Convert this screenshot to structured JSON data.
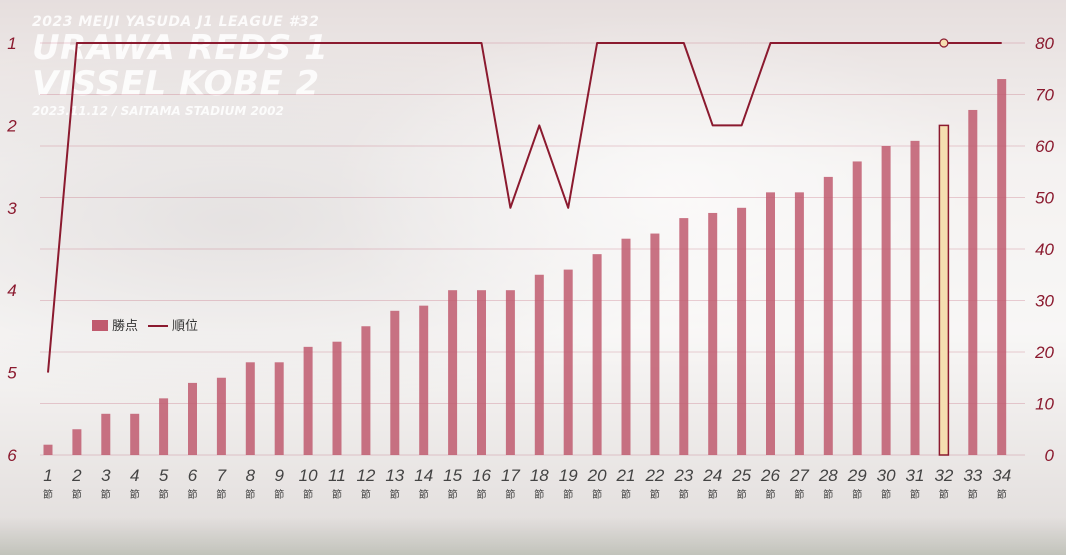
{
  "headline": {
    "league": "2023 MEIJI YASUDA J1 LEAGUE #32",
    "team1": "URAWA REDS 1",
    "team2": "VISSEL KOBE 2",
    "match_info": "2023.11.12 / SAITAMA STADIUM 2002"
  },
  "colors": {
    "bar": "#c05a6e",
    "bar_highlight": "#f5deb0",
    "bar_highlight_stroke": "#8b1a2f",
    "line": "#8b1a2f",
    "axis_text": "#8b1a2f",
    "x_text": "#444444"
  },
  "chart_data": {
    "type": "bar",
    "combo": "bar + line (dual axis)",
    "categories": [
      "1",
      "2",
      "3",
      "4",
      "5",
      "6",
      "7",
      "8",
      "9",
      "10",
      "11",
      "12",
      "13",
      "14",
      "15",
      "16",
      "17",
      "18",
      "19",
      "20",
      "21",
      "22",
      "23",
      "24",
      "25",
      "26",
      "27",
      "28",
      "29",
      "30",
      "31",
      "32",
      "33",
      "34"
    ],
    "category_suffix": "節",
    "series": [
      {
        "name": "勝点",
        "type": "bar",
        "axis": "right",
        "values": [
          2,
          5,
          8,
          8,
          11,
          14,
          15,
          18,
          18,
          21,
          22,
          25,
          28,
          29,
          32,
          32,
          32,
          35,
          36,
          39,
          42,
          43,
          46,
          47,
          48,
          51,
          51,
          54,
          57,
          60,
          61,
          64,
          67,
          73
        ]
      },
      {
        "name": "順位",
        "type": "line",
        "axis": "left",
        "values": [
          5,
          1,
          1,
          1,
          1,
          1,
          1,
          1,
          1,
          1,
          1,
          1,
          1,
          1,
          1,
          1,
          3,
          2,
          3,
          1,
          1,
          1,
          1,
          2,
          2,
          1,
          1,
          1,
          1,
          1,
          1,
          1,
          1,
          1
        ]
      }
    ],
    "highlight_index": 31,
    "right_axis": {
      "range": [
        0,
        80
      ],
      "ticks": [
        "0",
        "10",
        "20",
        "30",
        "40",
        "50",
        "60",
        "70",
        "80"
      ]
    },
    "left_axis": {
      "range": [
        1,
        6
      ],
      "reversed": true,
      "ticks": [
        "1",
        "2",
        "3",
        "4",
        "5",
        "6"
      ]
    },
    "legend": {
      "placement": "left-middle",
      "bar_label": "勝点",
      "line_label": "順位"
    }
  }
}
